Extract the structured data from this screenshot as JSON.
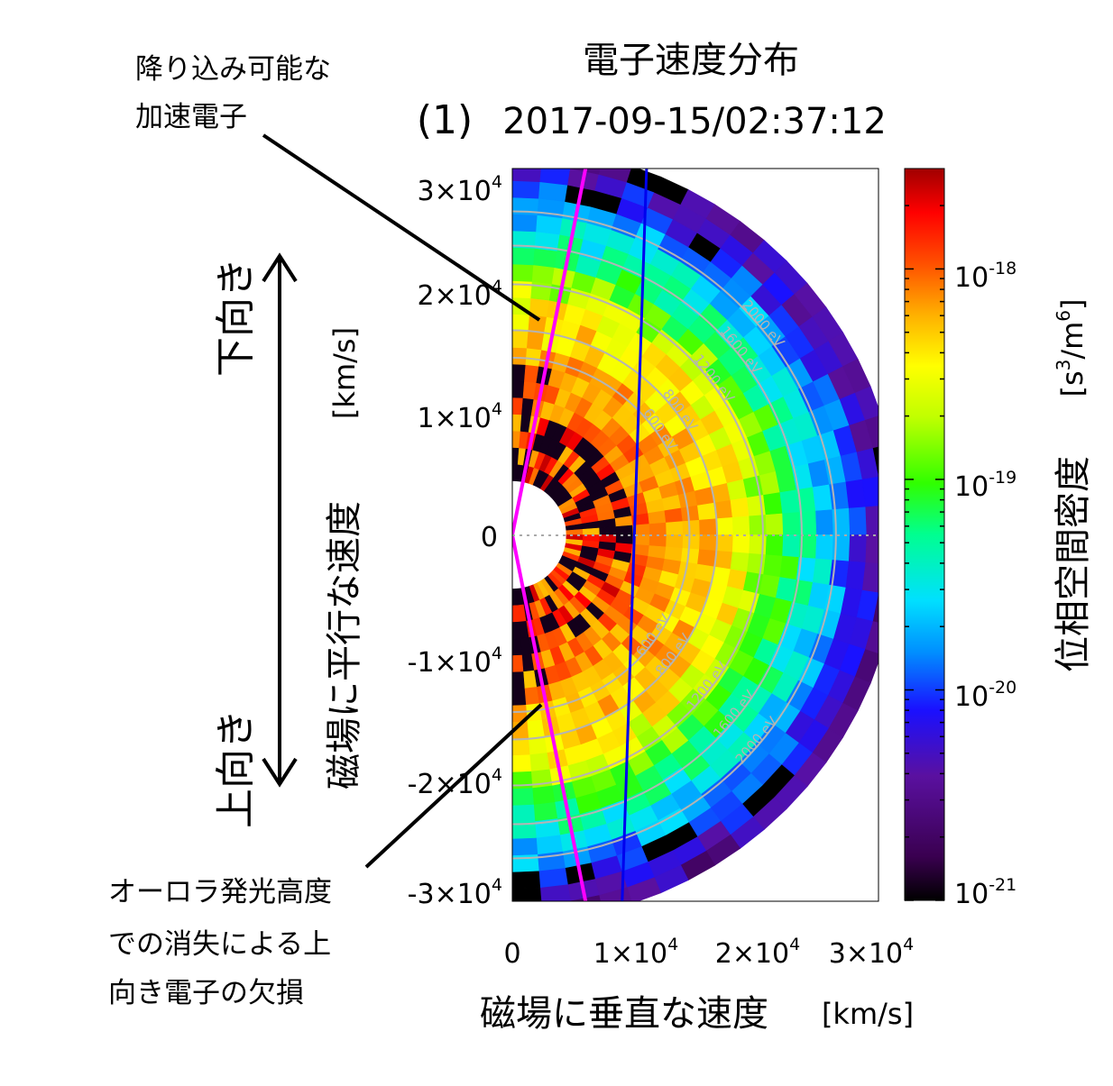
{
  "chart_data": {
    "type": "heatmap",
    "title": "電子速度分布",
    "subtitle_index": "(1)",
    "timestamp": "2017-09-15/02:37:12",
    "xlabel": "磁場に垂直な速度",
    "xlabel_unit": "[km/s]",
    "ylabel": "磁場に平行な速度",
    "ylabel_unit": "[km/s]",
    "xlim": [
      0,
      30000
    ],
    "ylim": [
      -30000,
      30000
    ],
    "x_ticks": [
      {
        "value": 0,
        "mant": "0",
        "exp": ""
      },
      {
        "value": 10000,
        "mant": "1×10",
        "exp": "4"
      },
      {
        "value": 20000,
        "mant": "2×10",
        "exp": "4"
      },
      {
        "value": 30000,
        "mant": "3×10",
        "exp": "4"
      }
    ],
    "y_ticks": [
      {
        "value": 30000,
        "mant": "3×10",
        "exp": "4"
      },
      {
        "value": 20000,
        "mant": "2×10",
        "exp": "4"
      },
      {
        "value": 10000,
        "mant": "1×10",
        "exp": "4"
      },
      {
        "value": 0,
        "mant": "0",
        "exp": ""
      },
      {
        "value": -10000,
        "mant": "-1×10",
        "exp": "4"
      },
      {
        "value": -20000,
        "mant": "-2×10",
        "exp": "4"
      },
      {
        "value": -30000,
        "mant": "-3×10",
        "exp": "4"
      }
    ],
    "colorbar": {
      "label": "位相空間密度",
      "unit_base": "[s",
      "unit_exp1": "3",
      "unit_mid": "/m",
      "unit_exp2": "6",
      "unit_end": "]",
      "scale": "log",
      "range": [
        1e-21,
        3e-18
      ],
      "ticks": [
        {
          "value": 1e-18,
          "base": "10",
          "exp": "-18"
        },
        {
          "value": 1e-19,
          "base": "10",
          "exp": "-19"
        },
        {
          "value": 1e-20,
          "base": "10",
          "exp": "-20"
        },
        {
          "value": 1e-21,
          "base": "10",
          "exp": "-21"
        }
      ]
    },
    "energy_contours": [
      {
        "energy_eV": 600,
        "label": "600 eV"
      },
      {
        "energy_eV": 800,
        "label": "800 eV"
      },
      {
        "energy_eV": 1200,
        "label": "1200 eV"
      },
      {
        "energy_eV": 1600,
        "label": "1600 eV"
      },
      {
        "energy_eV": 2000,
        "label": "2000 eV"
      }
    ],
    "lines": [
      {
        "name": "magenta",
        "color": "#ff00ff",
        "x_at_top": 6000,
        "x_at_bottom": 6000,
        "x_at_center": 0
      },
      {
        "name": "blue",
        "color": "#0000ee",
        "x_at_top": 11000,
        "x_at_bottom": 9000
      }
    ],
    "grid": false
  },
  "annotations": {
    "top_note_line1": "降り込み可能な",
    "top_note_line2": "加速電子",
    "bottom_note_line1": "オーロラ発光高度",
    "bottom_note_line2": "での消失による上",
    "bottom_note_line3": "向き電子の欠損",
    "arrow_top_label": "下向き",
    "arrow_bottom_label": "上向き"
  },
  "colors": {
    "contour": "#b4b4b4",
    "magenta_line": "#ff00ff",
    "blue_line": "#0000ee"
  }
}
